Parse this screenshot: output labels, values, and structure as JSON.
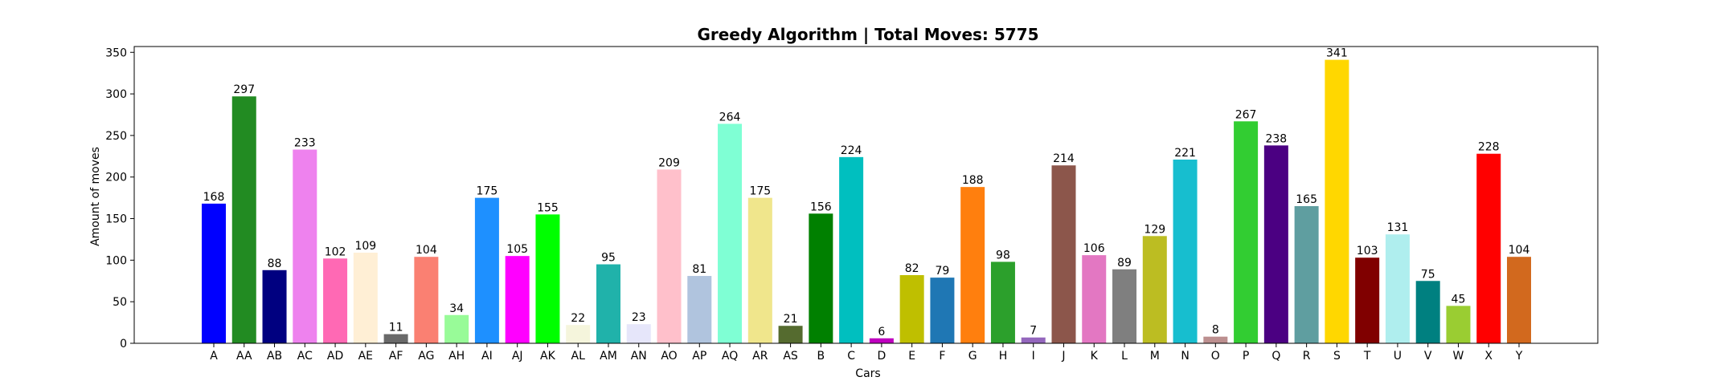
{
  "chart_data": {
    "type": "bar",
    "title": "Greedy Algorithm | Total Moves: 5775",
    "xlabel": "Cars",
    "ylabel": "Amount of moves",
    "ylim": [
      0,
      357
    ],
    "yticks": [
      0,
      50,
      100,
      150,
      200,
      250,
      300,
      350
    ],
    "grid": false,
    "categories": [
      "A",
      "AA",
      "AB",
      "AC",
      "AD",
      "AE",
      "AF",
      "AG",
      "AH",
      "AI",
      "AJ",
      "AK",
      "AL",
      "AM",
      "AN",
      "AO",
      "AP",
      "AQ",
      "AR",
      "AS",
      "B",
      "C",
      "D",
      "E",
      "F",
      "G",
      "H",
      "I",
      "J",
      "K",
      "L",
      "M",
      "N",
      "O",
      "P",
      "Q",
      "R",
      "S",
      "T",
      "U",
      "V",
      "W",
      "X",
      "Y"
    ],
    "values": [
      168,
      297,
      88,
      233,
      102,
      109,
      11,
      104,
      34,
      175,
      105,
      155,
      22,
      95,
      23,
      209,
      81,
      264,
      175,
      21,
      156,
      224,
      6,
      82,
      79,
      188,
      98,
      7,
      214,
      106,
      89,
      129,
      221,
      8,
      267,
      238,
      165,
      341,
      103,
      131,
      75,
      45,
      228,
      104
    ],
    "colors": [
      "#0000ff",
      "#228b22",
      "#000080",
      "#ee82ee",
      "#ff69b4",
      "#ffefd5",
      "#696969",
      "#fa8072",
      "#98fb98",
      "#1e90ff",
      "#ff00ff",
      "#00ff00",
      "#f5f5dc",
      "#20b2aa",
      "#e6e6fa",
      "#ffc0cb",
      "#b0c4de",
      "#7fffd4",
      "#f0e68c",
      "#556b2f",
      "#008000",
      "#00bfbf",
      "#bf00bf",
      "#bfbf00",
      "#1f77b4",
      "#ff7f0e",
      "#2ca02c",
      "#9467bd",
      "#8c564b",
      "#e377c2",
      "#7f7f7f",
      "#bcbd22",
      "#17becf",
      "#bc8f8f",
      "#32cd32",
      "#4b0082",
      "#5f9ea0",
      "#ffd700",
      "#800000",
      "#afeeee",
      "#008080",
      "#9acd32",
      "#ff0000",
      "#d2691e"
    ]
  }
}
